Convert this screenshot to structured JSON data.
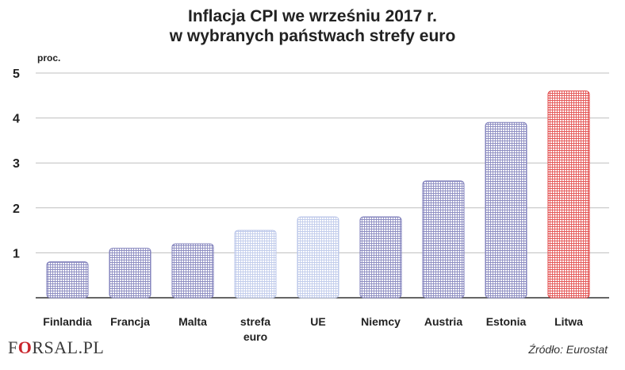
{
  "chart_data": {
    "type": "bar",
    "title_line1": "Inflacja CPI we wrześniu 2017 r.",
    "title_line2": "w wybranych państwach strefy euro",
    "ylabel": "proc.",
    "ylim": [
      0,
      5
    ],
    "yticks": [
      "1",
      "2",
      "3",
      "4",
      "5"
    ],
    "categories": [
      "Finlandia",
      "Francja",
      "Malta",
      "strefa euro",
      "UE",
      "Niemcy",
      "Austria",
      "Estonia",
      "Litwa"
    ],
    "category_lines": [
      [
        "Finlandia"
      ],
      [
        "Francja"
      ],
      [
        "Malta"
      ],
      [
        "strefa",
        "euro"
      ],
      [
        "UE"
      ],
      [
        "Niemcy"
      ],
      [
        "Austria"
      ],
      [
        "Estonia"
      ],
      [
        "Litwa"
      ]
    ],
    "values": [
      0.8,
      1.1,
      1.2,
      1.5,
      1.8,
      1.8,
      2.6,
      3.9,
      4.6
    ],
    "bar_colors": [
      "#7a7ab8",
      "#7a7ab8",
      "#7a7ab8",
      "#b8c4e8",
      "#b8c4e8",
      "#7a7ab8",
      "#7a7ab8",
      "#7a7ab8",
      "#e03a3a"
    ],
    "grid": true
  },
  "logo": {
    "before": "F",
    "mark": "O",
    "after": "RSAL.PL"
  },
  "source": "Źródło: Eurostat"
}
